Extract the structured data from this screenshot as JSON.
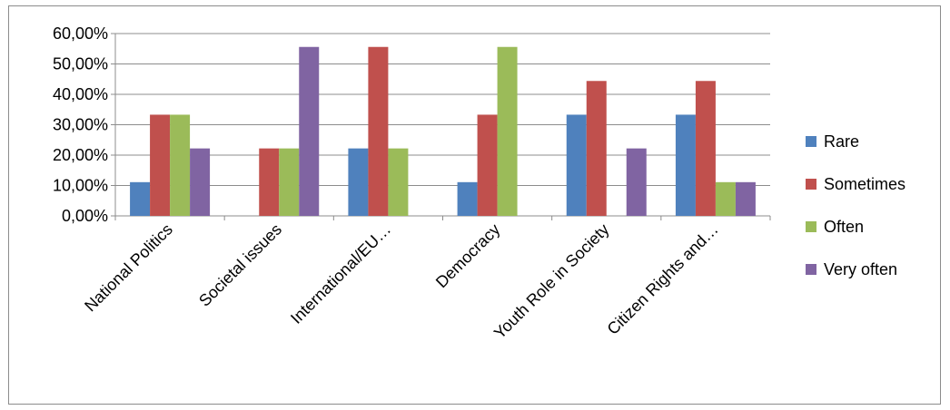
{
  "chart_data": {
    "type": "bar",
    "title": "",
    "xlabel": "",
    "ylabel": "",
    "ylim": [
      0,
      0.6
    ],
    "y_ticks": [
      "0,00%",
      "10,00%",
      "20,00%",
      "30,00%",
      "40,00%",
      "50,00%",
      "60,00%"
    ],
    "grid": "horizontal",
    "legend_position": "right",
    "categories": [
      "National Politics",
      "Societal issues",
      "International/EU…",
      "Democracy",
      "Youth Role in Society",
      "Citizen Rights and…"
    ],
    "series": [
      {
        "name": "Rare",
        "color": "#4f81bd",
        "values": [
          0.111,
          0,
          0.222,
          0.111,
          0.333,
          0.333
        ]
      },
      {
        "name": "Sometimes",
        "color": "#c0504d",
        "values": [
          0.333,
          0.222,
          0.556,
          0.333,
          0.444,
          0.444
        ]
      },
      {
        "name": "Often",
        "color": "#9bbb59",
        "values": [
          0.333,
          0.222,
          0.222,
          0.556,
          0,
          0.111
        ]
      },
      {
        "name": "Very often",
        "color": "#8064a2",
        "values": [
          0.222,
          0.556,
          0,
          0,
          0.222,
          0.111
        ]
      }
    ]
  }
}
